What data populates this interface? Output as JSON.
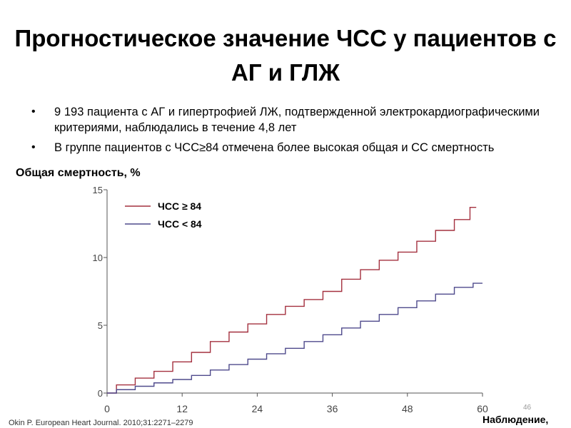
{
  "slide": {
    "title": "Прогностическое значение ЧСС у пациентов с АГ и ГЛЖ",
    "bullets": [
      "9 193 пациента с АГ и гипертрофией ЛЖ, подтвержденной электрокардиографическими критериями, наблюдались в течение 4,8 лет",
      "В группе пациентов с ЧСС≥84 отмечена более высокая общая и СС смертность"
    ],
    "bullet_glyph": "•",
    "citation": "Okin P. European Heart Journal. 2010;31:2271–2279",
    "slide_number": "46"
  },
  "chart_data": {
    "type": "line",
    "title": "",
    "ylabel": "Общая смертность, %",
    "xlabel": "Наблюдение,",
    "xlim": [
      0,
      60
    ],
    "ylim": [
      0,
      15
    ],
    "xticks": [
      0,
      12,
      24,
      36,
      48,
      60
    ],
    "yticks": [
      0,
      5,
      10,
      15
    ],
    "grid": false,
    "legend_position": "top-left",
    "series": [
      {
        "name": "ЧСС ≥ 84",
        "color": "#a4303f",
        "x": [
          0,
          3,
          6,
          9,
          12,
          15,
          18,
          21,
          24,
          27,
          30,
          33,
          36,
          39,
          42,
          45,
          48,
          51,
          54,
          57,
          59
        ],
        "values": [
          0,
          0.6,
          1.1,
          1.6,
          2.3,
          3.0,
          3.8,
          4.5,
          5.1,
          5.8,
          6.4,
          6.9,
          7.5,
          8.4,
          9.1,
          9.8,
          10.4,
          11.2,
          12.0,
          12.8,
          13.7
        ]
      },
      {
        "name": "ЧСС < 84",
        "color": "#4f4a8c",
        "x": [
          0,
          3,
          6,
          9,
          12,
          15,
          18,
          21,
          24,
          27,
          30,
          33,
          36,
          39,
          42,
          45,
          48,
          51,
          54,
          57,
          60
        ],
        "values": [
          0,
          0.25,
          0.5,
          0.75,
          1.0,
          1.3,
          1.7,
          2.1,
          2.5,
          2.9,
          3.3,
          3.8,
          4.3,
          4.8,
          5.3,
          5.8,
          6.3,
          6.8,
          7.3,
          7.8,
          8.1
        ]
      }
    ]
  }
}
